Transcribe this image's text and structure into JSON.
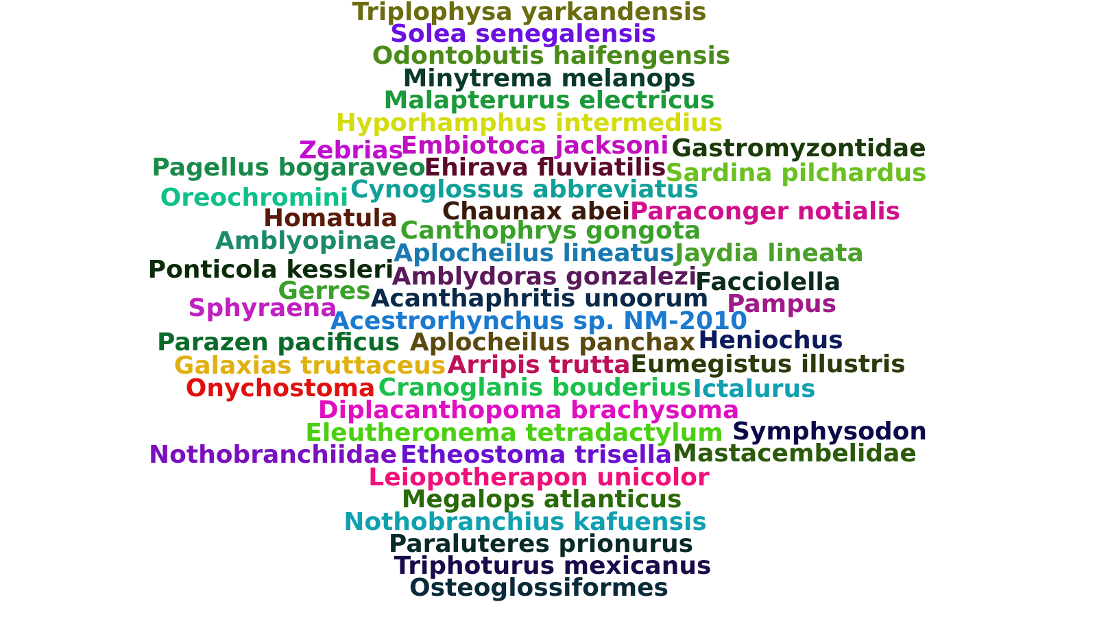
{
  "words": [
    {
      "text": "Triplophysa yarkandensis",
      "color": "#6b6b10"
    },
    {
      "text": "Solea senegalensis",
      "color": "#6a10e0"
    },
    {
      "text": "Odontobutis haifengensis",
      "color": "#4a8a18"
    },
    {
      "text": "Minytrema melanops",
      "color": "#0a3a2a"
    },
    {
      "text": "Malapterurus electricus",
      "color": "#1a9a3a"
    },
    {
      "text": "Hyporhamphus intermedius",
      "color": "#d4dc10"
    },
    {
      "text": "Zebrias",
      "color": "#c010d0"
    },
    {
      "text": "Embiotoca jacksoni",
      "color": "#c010c0"
    },
    {
      "text": "Gastromyzontidae",
      "color": "#1a3a0a"
    },
    {
      "text": "Pagellus bogaraveo",
      "color": "#1a8a4a"
    },
    {
      "text": "Ehirava fluviatilis",
      "color": "#5a0a2a"
    },
    {
      "text": "Sardina pilchardus",
      "color": "#6ac020"
    },
    {
      "text": "Oreochromini",
      "color": "#10c08a"
    },
    {
      "text": "Cynoglossus abbreviatus",
      "color": "#10a09a"
    },
    {
      "text": "Chaunax abei",
      "color": "#3a1a0a"
    },
    {
      "text": "Paraconger notialis",
      "color": "#d0108a"
    },
    {
      "text": "Homatula",
      "color": "#5a1a0a"
    },
    {
      "text": "Canthophrys gongota",
      "color": "#3aa02a"
    },
    {
      "text": "Amblyopinae",
      "color": "#1a8a6a"
    },
    {
      "text": "Aplocheilus lineatus",
      "color": "#1a7ab0"
    },
    {
      "text": "Jaydia lineata",
      "color": "#4aa02a"
    },
    {
      "text": "Ponticola kessleri",
      "color": "#0a2a0a"
    },
    {
      "text": "Amblydoras gonzalezi",
      "color": "#5a1a5a"
    },
    {
      "text": "Gerres",
      "color": "#3aa02a"
    },
    {
      "text": "Facciolella",
      "color": "#0a2a1a"
    },
    {
      "text": "Sphyraena",
      "color": "#c020c0"
    },
    {
      "text": "Acanthaphritis unoorum",
      "color": "#0a2a4a"
    },
    {
      "text": "Pampus",
      "color": "#a01a8a"
    },
    {
      "text": "Acestrorhynchus sp. NM-2010",
      "color": "#1a7ad0"
    },
    {
      "text": "Parazen pacificus",
      "color": "#0a6a2a"
    },
    {
      "text": "Aplocheilus panchax",
      "color": "#5a4a10"
    },
    {
      "text": "Heniochus",
      "color": "#0a1a5a"
    },
    {
      "text": "Galaxias truttaceus",
      "color": "#e0b010"
    },
    {
      "text": "Arripis trutta",
      "color": "#c0105a"
    },
    {
      "text": "Eumegistus illustris",
      "color": "#2a3a0a"
    },
    {
      "text": "Onychostoma",
      "color": "#e01010"
    },
    {
      "text": "Cranoglanis bouderius",
      "color": "#1ac04a"
    },
    {
      "text": "Ictalurus",
      "color": "#10a0b0"
    },
    {
      "text": "Diplacanthopoma brachysoma",
      "color": "#e010c0"
    },
    {
      "text": "Eleutheronema tetradactylum",
      "color": "#4ad010"
    },
    {
      "text": "Symphysodon",
      "color": "#0a0a4a"
    },
    {
      "text": "Nothobranchiidae",
      "color": "#7a10c0"
    },
    {
      "text": "Etheostoma trisella",
      "color": "#6a10d0"
    },
    {
      "text": "Mastacembelidae",
      "color": "#2a5a0a"
    },
    {
      "text": "Leiopotherapon unicolor",
      "color": "#f0107a"
    },
    {
      "text": "Megalops atlanticus",
      "color": "#2a6a0a"
    },
    {
      "text": "Nothobranchius kafuensis",
      "color": "#10a0b0"
    },
    {
      "text": "Paraluteres prionurus",
      "color": "#0a2a2a"
    },
    {
      "text": "Triphoturus mexicanus",
      "color": "#1a0a4a"
    },
    {
      "text": "Osteoglossiformes",
      "color": "#0a2a3a"
    }
  ]
}
